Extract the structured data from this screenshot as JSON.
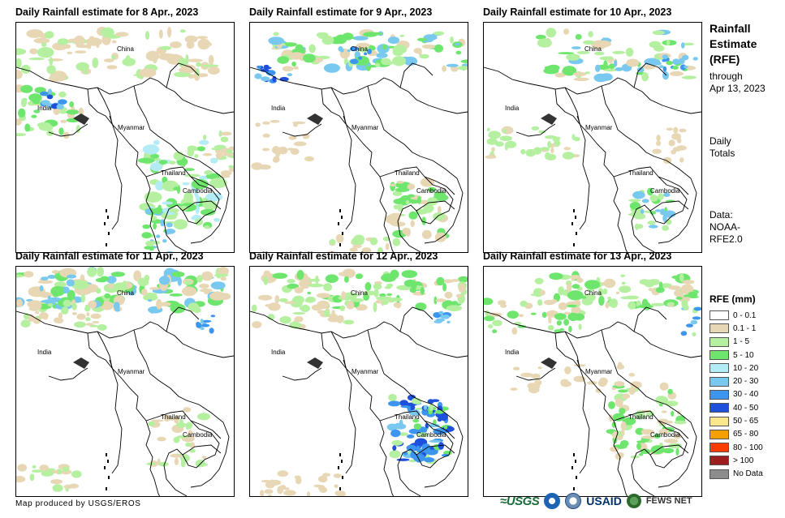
{
  "panels": [
    {
      "title": "Daily Rainfall estimate for 8 Apr., 2023"
    },
    {
      "title": "Daily Rainfall estimate for 9 Apr., 2023"
    },
    {
      "title": "Daily Rainfall estimate for 10 Apr., 2023"
    },
    {
      "title": "Daily Rainfall estimate for 11 Apr., 2023"
    },
    {
      "title": "Daily Rainfall estimate for 12 Apr., 2023"
    },
    {
      "title": "Daily Rainfall estimate for 13 Apr., 2023"
    }
  ],
  "map_labels": {
    "china": "China",
    "india": "India",
    "myanmar": "Myanmar",
    "thailand": "Thailand",
    "cambodia": "Cambodia"
  },
  "sidebar": {
    "title_lines": [
      "Rainfall",
      "Estimate",
      "(RFE)"
    ],
    "through_lines": [
      "through",
      "Apr 13, 2023"
    ],
    "daily_lines": [
      "Daily",
      "Totals"
    ],
    "data_lines": [
      "Data:",
      "NOAA-",
      "RFE2.0"
    ]
  },
  "legend": {
    "title": "RFE (mm)",
    "items": [
      {
        "label": "0 - 0.1",
        "color": "#ffffff"
      },
      {
        "label": "0.1 - 1",
        "color": "#e8d7b4"
      },
      {
        "label": "1 - 5",
        "color": "#b4f0a0"
      },
      {
        "label": "5 - 10",
        "color": "#6ee66e"
      },
      {
        "label": "10 - 20",
        "color": "#b4ecf5"
      },
      {
        "label": "20 - 30",
        "color": "#78c8f0"
      },
      {
        "label": "30 - 40",
        "color": "#3c96f0"
      },
      {
        "label": "40 - 50",
        "color": "#1e50dc"
      },
      {
        "label": "50 - 65",
        "color": "#fae68c"
      },
      {
        "label": "65 - 80",
        "color": "#f5a000"
      },
      {
        "label": "80 - 100",
        "color": "#fa3c00"
      },
      {
        "label": "> 100",
        "color": "#a01e1e"
      },
      {
        "label": "No Data",
        "color": "#8c8c8c"
      }
    ]
  },
  "footer": {
    "credit": "Map produced by USGS/EROS",
    "logos": {
      "usgs": "≈USGS",
      "usaid": "USAID",
      "fews": "FEWS NET"
    }
  }
}
